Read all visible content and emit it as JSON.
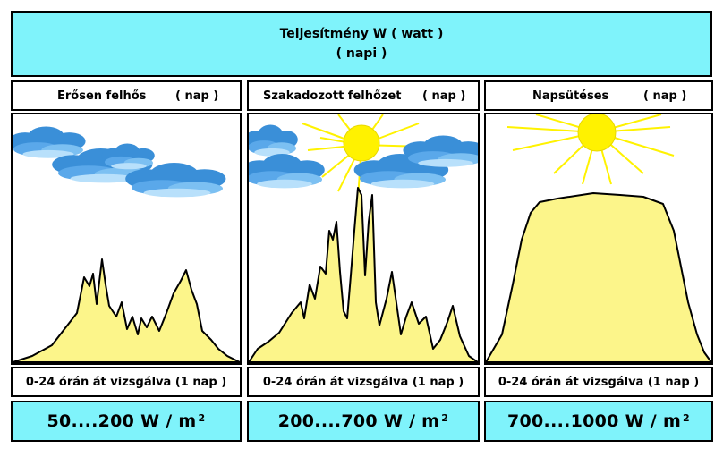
{
  "header": {
    "title": "Teljesítmény W ( watt )",
    "subtitle": "( napi )"
  },
  "columns": [
    {
      "condition": "Erősen felhős",
      "nap": "( nap )",
      "footer": "0-24 órán át vizsgálva  (1 nap )",
      "range": "50....200 W / m",
      "exponent": "2"
    },
    {
      "condition": "Szakadozott felhőzet",
      "nap": "( nap )",
      "footer": "0-24 órán át vizsgálva  (1 nap )",
      "range": "200....700 W / m",
      "exponent": "2"
    },
    {
      "condition": "Napsütéses",
      "nap": "( nap )",
      "footer": "0-24 órán át vizsgálva  (1 nap )",
      "range": "700....1000 W / m",
      "exponent": "2"
    }
  ],
  "colors": {
    "header_bg": "#7ff3fb",
    "curve_fill": "#fcf58a",
    "sun": "#fff200",
    "cloud": "#3a8fd8"
  },
  "icons": [
    "sun-icon",
    "cloud-icon"
  ]
}
